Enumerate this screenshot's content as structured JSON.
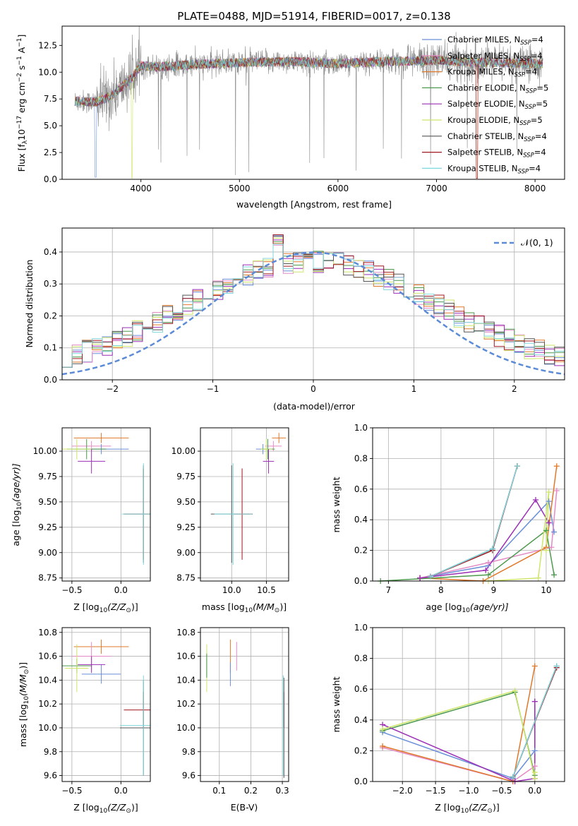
{
  "colors": {
    "chabrier_miles": "#6a8fd9",
    "salpeter_miles": "#e48bc6",
    "kroupa_miles": "#e0782a",
    "chabrier_elodie": "#4e9a4e",
    "salpeter_elodie": "#9b2fb5",
    "kroupa_elodie": "#cde66a",
    "chabrier_stelib": "#555555",
    "salpeter_stelib": "#a01820",
    "kroupa_stelib": "#7fd6dc",
    "data": "#888888",
    "normal": "#5b8bd6",
    "grid": "#b0b0b0"
  },
  "chart_data": [
    {
      "id": "spectrum",
      "type": "line",
      "title": "PLATE=0488, MJD=51914, FIBERID=0017, z=0.138",
      "xlabel": "wavelength [Angstrom, rest frame]",
      "ylabel_main": "Flux [f",
      "ylabel_sub1": "λ",
      "ylabel_mid": "10",
      "ylabel_sup1": "−17",
      "ylabel_rest": " erg cm",
      "ylabel_sup2": "−2",
      "ylabel_rest2": " s",
      "ylabel_sup3": "−1",
      "ylabel_rest3": " A",
      "ylabel_sup4": "−1",
      "ylabel_end": "]",
      "xlim": [
        3200,
        8300
      ],
      "ylim": [
        0,
        14.3
      ],
      "xticks": [
        4000,
        5000,
        6000,
        7000,
        8000
      ],
      "xticklabels": [
        "4000",
        "5000",
        "6000",
        "7000",
        "8000"
      ],
      "yticks": [
        0,
        2.5,
        5.0,
        7.5,
        10.0,
        12.5
      ],
      "yticklabels": [
        "0.0",
        "2.5",
        "5.0",
        "7.5",
        "10.0",
        "12.5"
      ],
      "spectrum_xrange": [
        3330,
        8080
      ],
      "continuum_knots": {
        "x": [
          3330,
          3550,
          3700,
          3900,
          4000,
          4200,
          4500,
          5000,
          5500,
          6000,
          6500,
          7000,
          7500,
          8080
        ],
        "y": [
          7.3,
          7.2,
          7.8,
          9.4,
          10.6,
          10.5,
          10.7,
          10.9,
          11.0,
          10.8,
          11.0,
          11.1,
          10.9,
          10.8
        ]
      },
      "legend_location": "right",
      "legend": [
        {
          "key": "chabrier_miles",
          "label": "Chabrier MILES, N",
          "sub": "SSP",
          "suffix": "=4"
        },
        {
          "key": "salpeter_miles",
          "label": "Salpeter MILES, N",
          "sub": "SSP",
          "suffix": "=4"
        },
        {
          "key": "kroupa_miles",
          "label": "Kroupa MILES, N",
          "sub": "SSP",
          "suffix": "=4"
        },
        {
          "key": "chabrier_elodie",
          "label": "Chabrier ELODIE, N",
          "sub": "SSP",
          "suffix": "=5"
        },
        {
          "key": "salpeter_elodie",
          "label": "Salpeter ELODIE, N",
          "sub": "SSP",
          "suffix": "=5"
        },
        {
          "key": "kroupa_elodie",
          "label": "Kroupa ELODIE, N",
          "sub": "SSP",
          "suffix": "=5"
        },
        {
          "key": "chabrier_stelib",
          "label": "Chabrier STELIB, N",
          "sub": "SSP",
          "suffix": "=4"
        },
        {
          "key": "salpeter_stelib",
          "label": "Salpeter STELIB, N",
          "sub": "SSP",
          "suffix": "=4"
        },
        {
          "key": "kroupa_stelib",
          "label": "Kroupa STELIB, N",
          "sub": "SSP",
          "suffix": "=4"
        }
      ]
    },
    {
      "id": "residuals",
      "type": "line",
      "xlabel": "(data-model)/error",
      "ylabel": "Normed distribution",
      "xlim": [
        -2.5,
        2.5
      ],
      "ylim": [
        0,
        0.475
      ],
      "grid": true,
      "xticks": [
        -2,
        -1,
        0,
        1,
        2
      ],
      "xticklabels": [
        "−2",
        "−1",
        "0",
        "1",
        "2"
      ],
      "yticks": [
        0,
        0.1,
        0.2,
        0.3,
        0.4
      ],
      "yticklabels": [
        "0.0",
        "0.1",
        "0.2",
        "0.3",
        "0.4"
      ],
      "legend_label": "𝒩(0, 1)",
      "legend_location": "top-right",
      "bin_edges_start": -2.5,
      "bin_width": 0.1
    },
    {
      "id": "age_vs_Z",
      "type": "scatter",
      "xlabel_main": "Z [log",
      "xlabel_sub": "10",
      "xlabel_rest": "(Z/Z",
      "xlabel_sub2": "⊙",
      "xlabel_end": ")]",
      "ylabel_main": "age  [log",
      "ylabel_sub": "10",
      "ylabel_rest": "(age/yr)]",
      "xlim": [
        -0.6,
        0.3
      ],
      "ylim": [
        8.72,
        10.23
      ],
      "grid": true,
      "xticks": [
        -0.5,
        0.0
      ],
      "xticklabels": [
        "−0.5",
        "0.0"
      ],
      "yticks": [
        8.75,
        9.0,
        9.25,
        9.5,
        9.75,
        10.0
      ],
      "yticklabels": [
        "8.75",
        "9.00",
        "9.25",
        "9.50",
        "9.75",
        "10.00"
      ],
      "points": [
        {
          "key": "kroupa_miles",
          "x": -0.2,
          "xerr": 0.28,
          "y": 10.13,
          "yerr": 0.05
        },
        {
          "key": "salpeter_miles",
          "x": -0.3,
          "xerr": 0.2,
          "y": 10.05,
          "yerr": 0.05
        },
        {
          "key": "chabrier_miles",
          "x": -0.2,
          "xerr": 0.28,
          "y": 10.02,
          "yerr": 0.05
        },
        {
          "key": "chabrier_elodie",
          "x": -0.35,
          "xerr": 0.2,
          "y": 10.02,
          "yerr": 0.1
        },
        {
          "key": "kroupa_elodie",
          "x": -0.45,
          "xerr": 0.15,
          "y": 10.02,
          "yerr": 0.1
        },
        {
          "key": "salpeter_elodie",
          "x": -0.3,
          "xerr": 0.14,
          "y": 9.9,
          "yerr": 0.12
        },
        {
          "key": "chabrier_stelib",
          "x": 0.23,
          "xerr": 0.2,
          "y": 9.38,
          "yerr": 0.48
        },
        {
          "key": "salpeter_stelib",
          "x": 0.23,
          "xerr": 0.2,
          "y": 9.38,
          "yerr": 0.45
        },
        {
          "key": "kroupa_stelib",
          "x": 0.23,
          "xerr": 0.22,
          "y": 9.38,
          "yerr": 0.5
        }
      ]
    },
    {
      "id": "age_vs_mass",
      "type": "scatter",
      "xlabel_main": "mass [log",
      "xlabel_sub": "10",
      "xlabel_rest": "(M/M",
      "xlabel_sub2": "⊙",
      "xlabel_end": ")]",
      "xlim": [
        9.55,
        10.82
      ],
      "ylim": [
        8.72,
        10.23
      ],
      "grid": true,
      "xticks": [
        10.0,
        10.5
      ],
      "xticklabels": [
        "10.0",
        "10.5"
      ],
      "yticks": [
        8.75,
        9.0,
        9.25,
        9.5,
        9.75,
        10.0
      ],
      "yticklabels": [
        "8.75",
        "9.00",
        "9.25",
        "9.50",
        "9.75",
        "10.00"
      ],
      "points": [
        {
          "key": "kroupa_miles",
          "x": 10.68,
          "xerr": 0.1,
          "y": 10.13,
          "yerr": 0.05
        },
        {
          "key": "salpeter_miles",
          "x": 10.6,
          "xerr": 0.12,
          "y": 10.05,
          "yerr": 0.05
        },
        {
          "key": "chabrier_miles",
          "x": 10.45,
          "xerr": 0.1,
          "y": 10.02,
          "yerr": 0.05
        },
        {
          "key": "chabrier_elodie",
          "x": 10.52,
          "xerr": 0.1,
          "y": 10.02,
          "yerr": 0.1
        },
        {
          "key": "kroupa_elodie",
          "x": 10.5,
          "xerr": 0.08,
          "y": 10.02,
          "yerr": 0.1
        },
        {
          "key": "salpeter_elodie",
          "x": 10.53,
          "xerr": 0.08,
          "y": 9.9,
          "yerr": 0.12
        },
        {
          "key": "chabrier_stelib",
          "x": 10.0,
          "xerr": 0.3,
          "y": 9.38,
          "yerr": 0.48
        },
        {
          "key": "salpeter_stelib",
          "x": 10.15,
          "xerr": 0.12,
          "y": 9.38,
          "yerr": 0.45
        },
        {
          "key": "kroupa_stelib",
          "x": 10.02,
          "xerr": 0.27,
          "y": 9.38,
          "yerr": 0.5
        }
      ]
    },
    {
      "id": "mass_weight_vs_age",
      "type": "line",
      "xlabel_main": "age  [log",
      "xlabel_sub": "10",
      "xlabel_rest": "(age/yr)]",
      "ylabel": "mass weight",
      "xlim": [
        6.7,
        10.35
      ],
      "ylim": [
        0,
        1.0
      ],
      "grid": true,
      "xticks": [
        7,
        8,
        9,
        10
      ],
      "xticklabels": [
        "7",
        "8",
        "9",
        "10"
      ],
      "yticks": [
        0,
        0.2,
        0.4,
        0.6,
        0.8,
        1.0
      ],
      "yticklabels": [
        "0.0",
        "0.2",
        "0.4",
        "0.6",
        "0.8",
        "1.0"
      ],
      "series": [
        {
          "key": "chabrier_miles",
          "x": [
            7.6,
            8.9,
            10.05,
            10.15
          ],
          "y": [
            0.02,
            0.1,
            0.52,
            0.32
          ]
        },
        {
          "key": "salpeter_miles",
          "x": [
            7.6,
            8.9,
            10.1,
            10.2
          ],
          "y": [
            0.02,
            0.12,
            0.22,
            0.59
          ]
        },
        {
          "key": "kroupa_miles",
          "x": [
            7.6,
            8.8,
            10.0,
            10.2
          ],
          "y": [
            0.02,
            0.0,
            0.22,
            0.75
          ]
        },
        {
          "key": "chabrier_elodie",
          "x": [
            6.85,
            8.9,
            10.0,
            10.15
          ],
          "y": [
            0.0,
            0.04,
            0.33,
            0.04
          ]
        },
        {
          "key": "salpeter_elodie",
          "x": [
            7.6,
            8.85,
            9.8,
            10.05
          ],
          "y": [
            0.02,
            0.07,
            0.53,
            0.38
          ]
        },
        {
          "key": "kroupa_elodie",
          "x": [
            8.9,
            9.85,
            10.05,
            10.0
          ],
          "y": [
            0.0,
            0.02,
            0.58,
            0.2
          ]
        },
        {
          "key": "chabrier_stelib",
          "x": [
            7.8,
            8.98,
            9.45
          ],
          "y": [
            0.03,
            0.21,
            0.75
          ]
        },
        {
          "key": "salpeter_stelib",
          "x": [
            7.8,
            8.98,
            9.45
          ],
          "y": [
            0.03,
            0.2,
            0.75
          ]
        },
        {
          "key": "kroupa_stelib",
          "x": [
            7.8,
            8.98,
            9.45
          ],
          "y": [
            0.03,
            0.21,
            0.75
          ]
        }
      ]
    },
    {
      "id": "mass_vs_Z",
      "type": "scatter",
      "xlabel_main": "Z [log",
      "xlabel_sub": "10",
      "xlabel_rest": "(Z/Z",
      "xlabel_sub2": "⊙",
      "xlabel_end": ")]",
      "ylabel_main": "mass [log",
      "ylabel_sub": "10",
      "ylabel_rest": "(M/M",
      "ylabel_sub2": "⊙",
      "ylabel_end": ")]",
      "xlim": [
        -0.6,
        0.3
      ],
      "ylim": [
        9.55,
        10.84
      ],
      "grid": true,
      "xticks": [
        -0.5,
        0.0
      ],
      "xticklabels": [
        "−0.5",
        "0.0"
      ],
      "yticks": [
        9.6,
        9.8,
        10.0,
        10.2,
        10.4,
        10.6,
        10.8
      ],
      "yticklabels": [
        "9.6",
        "9.8",
        "10.0",
        "10.2",
        "10.4",
        "10.6",
        "10.8"
      ],
      "points": [
        {
          "key": "kroupa_miles",
          "x": -0.2,
          "xerr": 0.28,
          "y": 10.68,
          "yerr": 0.06
        },
        {
          "key": "salpeter_miles",
          "x": -0.3,
          "xerr": 0.2,
          "y": 10.6,
          "yerr": 0.12
        },
        {
          "key": "chabrier_miles",
          "x": -0.2,
          "xerr": 0.2,
          "y": 10.45,
          "yerr": 0.08
        },
        {
          "key": "chabrier_elodie",
          "x": -0.45,
          "xerr": 0.15,
          "y": 10.52,
          "yerr": 0.06
        },
        {
          "key": "kroupa_elodie",
          "x": -0.45,
          "xerr": 0.12,
          "y": 10.5,
          "yerr": 0.2
        },
        {
          "key": "salpeter_elodie",
          "x": -0.3,
          "xerr": 0.14,
          "y": 10.53,
          "yerr": 0.07
        },
        {
          "key": "chabrier_stelib",
          "x": 0.23,
          "xerr": 0.24,
          "y": 10.0,
          "yerr": 0.4
        },
        {
          "key": "salpeter_stelib",
          "x": 0.23,
          "xerr": 0.2,
          "y": 10.15,
          "yerr": 0.15
        },
        {
          "key": "kroupa_stelib",
          "x": 0.23,
          "xerr": 0.24,
          "y": 10.02,
          "yerr": 0.42
        }
      ]
    },
    {
      "id": "mass_vs_ebv",
      "type": "scatter",
      "xlabel": "E(B-V)",
      "xlim": [
        0.04,
        0.32
      ],
      "ylim": [
        9.55,
        10.84
      ],
      "grid": true,
      "xticks": [
        0.1,
        0.2,
        0.3
      ],
      "xticklabels": [
        "0.1",
        "0.2",
        "0.3"
      ],
      "yticks": [
        9.6,
        9.8,
        10.0,
        10.2,
        10.4,
        10.6,
        10.8
      ],
      "yticklabels": [
        "9.6",
        "9.8",
        "10.0",
        "10.2",
        "10.4",
        "10.6",
        "10.8"
      ],
      "points": [
        {
          "key": "salpeter_elodie",
          "x": 0.06,
          "y": 10.53,
          "yerr": 0.1
        },
        {
          "key": "kroupa_elodie",
          "x": 0.06,
          "y": 10.5,
          "yerr": 0.2
        },
        {
          "key": "chabrier_elodie",
          "x": 0.06,
          "y": 10.52,
          "yerr": 0.1
        },
        {
          "key": "kroupa_miles",
          "x": 0.135,
          "y": 10.6,
          "yerr": 0.14
        },
        {
          "key": "chabrier_miles",
          "x": 0.135,
          "y": 10.45,
          "yerr": 0.1
        },
        {
          "key": "salpeter_miles",
          "x": 0.155,
          "y": 10.6,
          "yerr": 0.12
        },
        {
          "key": "salpeter_stelib",
          "x": 0.305,
          "y": 10.15,
          "yerr": 0.15
        },
        {
          "key": "chabrier_stelib",
          "x": 0.305,
          "y": 10.0,
          "yerr": 0.42
        },
        {
          "key": "kroupa_stelib",
          "x": 0.303,
          "y": 10.02,
          "yerr": 0.42
        }
      ]
    },
    {
      "id": "mass_weight_vs_Z",
      "type": "line",
      "xlabel_main": "Z [log",
      "xlabel_sub": "10",
      "xlabel_rest": "(Z/Z",
      "xlabel_sub2": "⊙",
      "xlabel_end": ")]",
      "ylabel": "mass weight",
      "xlim": [
        -2.45,
        0.45
      ],
      "ylim": [
        0,
        1.0
      ],
      "grid": true,
      "xticks": [
        -2.0,
        -1.5,
        -1.0,
        -0.5,
        0.0
      ],
      "xticklabels": [
        "−2.0",
        "−1.5",
        "−1.0",
        "−0.5",
        "0.0"
      ],
      "yticks": [
        0,
        0.2,
        0.4,
        0.6,
        0.8,
        1.0
      ],
      "yticklabels": [
        "0.0",
        "0.2",
        "0.4",
        "0.6",
        "0.8",
        "1.0"
      ],
      "series": [
        {
          "key": "chabrier_miles",
          "x": [
            -2.3,
            -0.33,
            0.0,
            0.0
          ],
          "y": [
            0.32,
            0.02,
            0.2,
            0.52
          ]
        },
        {
          "key": "salpeter_miles",
          "x": [
            -2.3,
            -0.33,
            0.0,
            0.0
          ],
          "y": [
            0.22,
            0.0,
            0.1,
            0.52
          ]
        },
        {
          "key": "kroupa_miles",
          "x": [
            -2.3,
            -0.33,
            0.0
          ],
          "y": [
            0.23,
            0.0,
            0.75
          ]
        },
        {
          "key": "chabrier_elodie",
          "x": [
            -2.3,
            -0.3,
            0.0,
            0.0
          ],
          "y": [
            0.33,
            0.58,
            0.04,
            0.02
          ]
        },
        {
          "key": "salpeter_elodie",
          "x": [
            -2.3,
            -0.3,
            0.0,
            0.0
          ],
          "y": [
            0.37,
            0.0,
            0.02,
            0.52
          ]
        },
        {
          "key": "kroupa_elodie",
          "x": [
            -2.3,
            -0.3,
            0.0,
            0.0
          ],
          "y": [
            0.34,
            0.59,
            0.02,
            0.06
          ]
        },
        {
          "key": "chabrier_stelib",
          "x": [
            -0.33,
            0.33
          ],
          "y": [
            0.03,
            0.75
          ]
        },
        {
          "key": "salpeter_stelib",
          "x": [
            -0.33,
            0.33
          ],
          "y": [
            0.03,
            0.74
          ]
        },
        {
          "key": "kroupa_stelib",
          "x": [
            -0.33,
            0.33
          ],
          "y": [
            0.03,
            0.75
          ]
        }
      ]
    }
  ]
}
